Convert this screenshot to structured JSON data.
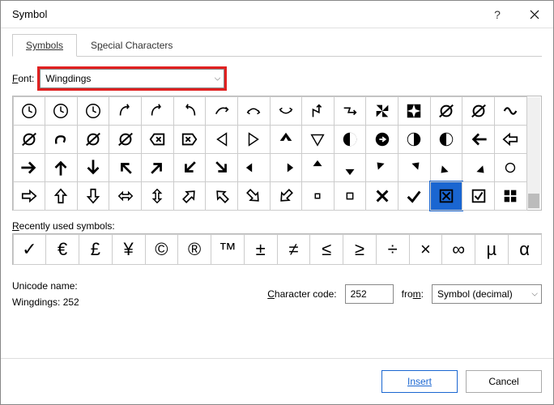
{
  "window": {
    "title": "Symbol"
  },
  "tabs": {
    "symbols": "Symbols",
    "special": "Special Characters"
  },
  "font": {
    "label_prefix": "F",
    "label_rest": "ont:",
    "value": "Wingdings",
    "highlight_color": "#e02020"
  },
  "grid": {
    "rows": 4,
    "cols": 16,
    "selected_index": 61,
    "selected_bg": "#1a66d1",
    "glyphs": [
      "clock",
      "clock",
      "clock",
      "arr-swoop-r",
      "arr-swoop-r",
      "arr-swoop-l",
      "arr-curve-r",
      "arr-curve-lr",
      "arr-curve-lr2",
      "arr-zig-u",
      "arr-zig-r",
      "pinwheel",
      "star4",
      "strike-o",
      "strike-o2",
      "curve-sym",
      "strike-o3",
      "curl",
      "strike-o4",
      "strike-o5",
      "del-box",
      "del-box-r",
      "tri-l",
      "tri-r",
      "arr3d-u",
      "tri-d",
      "circ-half",
      "circ-arrow",
      "head-l",
      "head-r",
      "arr-l-b",
      "arr-l-o",
      "arr-r-b",
      "arr-u-b",
      "arr-d-b",
      "arr-ul-b",
      "arr-ur-b",
      "arr-dl-b",
      "arr-dr-b",
      "arr-l-bb",
      "arr-r-bb",
      "arr-u-bb",
      "arr-d-bb",
      "arr-ul-bb",
      "arr-ur-bb",
      "arr-dl-bb",
      "arr-dr-bb",
      "arr-l-out",
      "arr-r-out",
      "arr-u-out",
      "arr-d-out",
      "arr-lr-out",
      "arr-ud-out",
      "arr-ur-out",
      "arr-ul-out",
      "arr-dr-out",
      "arr-dl-out",
      "sq-sm",
      "sq-sm2",
      "x-mark",
      "check",
      "x-box",
      "check-box",
      "win-logo"
    ]
  },
  "recent": {
    "label_prefix": "R",
    "label_rest": "ecently used symbols:",
    "glyphs": [
      "✓",
      "€",
      "£",
      "¥",
      "©",
      "®",
      "™",
      "±",
      "≠",
      "≤",
      "≥",
      "÷",
      "×",
      "∞",
      "µ",
      "α"
    ]
  },
  "unicode": {
    "label": "Unicode name:",
    "name": "Wingdings: 252",
    "charcode_label_u": "C",
    "charcode_label_rest": "haracter code:",
    "charcode_value": "252",
    "from_label_u": "m",
    "from_label_pre": "fro",
    "from_label_post": ":",
    "from_value": "Symbol (decimal)"
  },
  "buttons": {
    "insert": "Insert",
    "cancel": "Cancel"
  },
  "colors": {
    "accent": "#1a66d1",
    "border": "#cccccc"
  }
}
